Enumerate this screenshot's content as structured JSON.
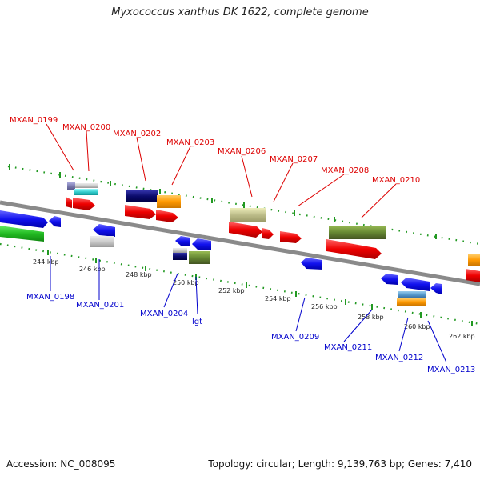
{
  "title": "Myxococcus xanthus DK 1622, complete genome",
  "footer": {
    "accession": "Accession: NC_008095",
    "summary": "Topology: circular; Length: 9,139,763 bp; Genes: 7,410"
  },
  "colors": {
    "top_label": "#dd0000",
    "bottom_label": "#0000cc",
    "backbone": "#888888",
    "dots": "#228822"
  },
  "ticks": [
    "244 kbp",
    "246 kbp",
    "248 kbp",
    "250 kbp",
    "252 kbp",
    "254 kbp",
    "256 kbp",
    "258 kbp",
    "260 kbp",
    "262 kbp"
  ],
  "top_labels": [
    "MXAN_0199",
    "MXAN_0200",
    "MXAN_0202",
    "MXAN_0203",
    "MXAN_0206",
    "MXAN_0207",
    "MXAN_0208",
    "MXAN_0210"
  ],
  "bottom_labels": [
    "MXAN_0198",
    "MXAN_0201",
    "MXAN_0204",
    "lgt",
    "MXAN_0209",
    "MXAN_0211",
    "MXAN_0212",
    "MXAN_0213"
  ]
}
